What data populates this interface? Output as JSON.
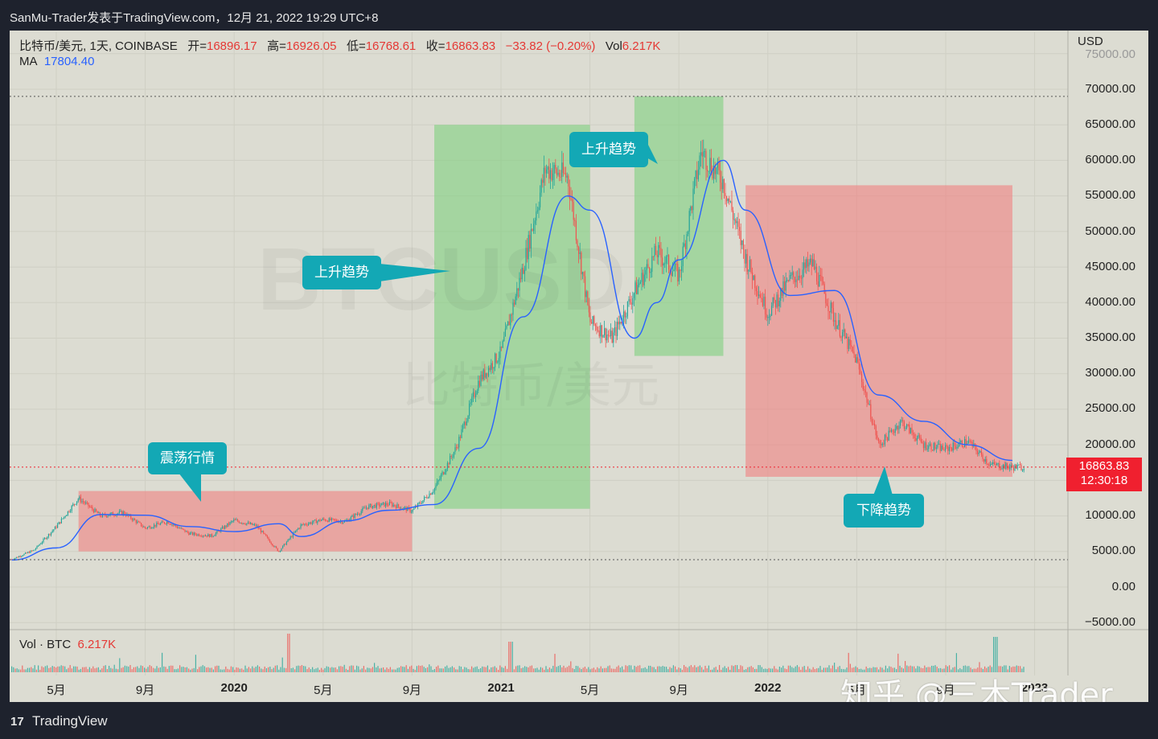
{
  "topbar": {
    "title": "SanMu-Trader发表于TradingView.com，12月 21, 2022 19:29 UTC+8"
  },
  "legend": {
    "symbol": "比特币/美元, 1天, COINBASE",
    "open_label": "开=",
    "open": "16896.17",
    "high_label": "高=",
    "high": "16926.05",
    "low_label": "低=",
    "low": "16768.61",
    "close_label": "收=",
    "close": "16863.83",
    "change": "−33.82 (−0.20%)",
    "vol_label": "Vol",
    "vol": "6.217K",
    "ma_label": "MA",
    "ma": "17804.40"
  },
  "volume_legend": {
    "label": "Vol · BTC",
    "value": "6.217K"
  },
  "axis": {
    "currency": "USD",
    "yticks": [
      "75000.00",
      "70000.00",
      "65000.00",
      "60000.00",
      "55000.00",
      "50000.00",
      "45000.00",
      "40000.00",
      "35000.00",
      "30000.00",
      "25000.00",
      "20000.00",
      "10000.00",
      "5000.00",
      "0.00",
      "−5000.00"
    ],
    "xticks": [
      {
        "label": "5月",
        "bold": false
      },
      {
        "label": "9月",
        "bold": false
      },
      {
        "label": "2020",
        "bold": true
      },
      {
        "label": "5月",
        "bold": false
      },
      {
        "label": "9月",
        "bold": false
      },
      {
        "label": "2021",
        "bold": true
      },
      {
        "label": "5月",
        "bold": false
      },
      {
        "label": "9月",
        "bold": false
      },
      {
        "label": "2022",
        "bold": true
      },
      {
        "label": "5月",
        "bold": false
      },
      {
        "label": "9月",
        "bold": false
      },
      {
        "label": "2023",
        "bold": true
      }
    ]
  },
  "price_box": {
    "price": "16863.83",
    "countdown": "12:30:18"
  },
  "callouts": {
    "range": "震荡行情",
    "uptrend1": "上升趋势",
    "uptrend2": "上升趋势",
    "downtrend": "下降趋势"
  },
  "background_text": {
    "symbol": "BTCUSD",
    "name": "比特币/美元"
  },
  "watermark": "知乎 @三木Trader",
  "footer": {
    "brand": "TradingView",
    "logo": "17"
  },
  "colors": {
    "up": "#26a69a",
    "down": "#ef5350",
    "ma": "#2962ff",
    "green_zone": "#7fd07f",
    "red_zone": "#f08080",
    "callout": "#13a8b5"
  },
  "chart_data": {
    "type": "candlestick",
    "title": "比特币/美元, 1天, COINBASE",
    "ylabel": "USD",
    "ylim": [
      -5000,
      75000
    ],
    "xrange": [
      "2019-03",
      "2023-01"
    ],
    "close_path": [
      {
        "date": "2019-03",
        "close": 3900
      },
      {
        "date": "2019-04",
        "close": 5200
      },
      {
        "date": "2019-05",
        "close": 8500
      },
      {
        "date": "2019-06",
        "close": 12500
      },
      {
        "date": "2019-07",
        "close": 10000
      },
      {
        "date": "2019-08",
        "close": 10500
      },
      {
        "date": "2019-09",
        "close": 8300
      },
      {
        "date": "2019-10",
        "close": 9200
      },
      {
        "date": "2019-11",
        "close": 7500
      },
      {
        "date": "2019-12",
        "close": 7200
      },
      {
        "date": "2020-01",
        "close": 9400
      },
      {
        "date": "2020-02",
        "close": 8600
      },
      {
        "date": "2020-03",
        "close": 5000
      },
      {
        "date": "2020-04",
        "close": 8700
      },
      {
        "date": "2020-05",
        "close": 9500
      },
      {
        "date": "2020-06",
        "close": 9200
      },
      {
        "date": "2020-07",
        "close": 11300
      },
      {
        "date": "2020-08",
        "close": 11700
      },
      {
        "date": "2020-09",
        "close": 10700
      },
      {
        "date": "2020-10",
        "close": 13800
      },
      {
        "date": "2020-11",
        "close": 19700
      },
      {
        "date": "2020-12",
        "close": 29000
      },
      {
        "date": "2021-01",
        "close": 33000
      },
      {
        "date": "2021-02",
        "close": 45000
      },
      {
        "date": "2021-03",
        "close": 58800
      },
      {
        "date": "2021-04",
        "close": 57700
      },
      {
        "date": "2021-05",
        "close": 37300
      },
      {
        "date": "2021-06",
        "close": 35000
      },
      {
        "date": "2021-07",
        "close": 41500
      },
      {
        "date": "2021-08",
        "close": 47100
      },
      {
        "date": "2021-09",
        "close": 43800
      },
      {
        "date": "2021-10",
        "close": 61300
      },
      {
        "date": "2021-11",
        "close": 57000
      },
      {
        "date": "2021-12",
        "close": 46300
      },
      {
        "date": "2022-01",
        "close": 38500
      },
      {
        "date": "2022-02",
        "close": 43200
      },
      {
        "date": "2022-03",
        "close": 45500
      },
      {
        "date": "2022-04",
        "close": 37700
      },
      {
        "date": "2022-05",
        "close": 31800
      },
      {
        "date": "2022-06",
        "close": 19900
      },
      {
        "date": "2022-07",
        "close": 23300
      },
      {
        "date": "2022-08",
        "close": 20000
      },
      {
        "date": "2022-09",
        "close": 19400
      },
      {
        "date": "2022-10",
        "close": 20500
      },
      {
        "date": "2022-11",
        "close": 17200
      },
      {
        "date": "2022-12",
        "close": 16864
      }
    ],
    "ma_path": [
      {
        "date": "2019-03",
        "ma": 3800
      },
      {
        "date": "2019-05",
        "ma": 5500
      },
      {
        "date": "2019-07",
        "ma": 10200
      },
      {
        "date": "2019-09",
        "ma": 10100
      },
      {
        "date": "2019-11",
        "ma": 8500
      },
      {
        "date": "2020-01",
        "ma": 7800
      },
      {
        "date": "2020-03",
        "ma": 8900
      },
      {
        "date": "2020-04",
        "ma": 7100
      },
      {
        "date": "2020-06",
        "ma": 9300
      },
      {
        "date": "2020-08",
        "ma": 10800
      },
      {
        "date": "2020-10",
        "ma": 11600
      },
      {
        "date": "2020-12",
        "ma": 19500
      },
      {
        "date": "2021-02",
        "ma": 38000
      },
      {
        "date": "2021-04",
        "ma": 55000
      },
      {
        "date": "2021-05",
        "ma": 53000
      },
      {
        "date": "2021-07",
        "ma": 35000
      },
      {
        "date": "2021-08",
        "ma": 40000
      },
      {
        "date": "2021-09",
        "ma": 46000
      },
      {
        "date": "2021-11",
        "ma": 60000
      },
      {
        "date": "2021-12",
        "ma": 53000
      },
      {
        "date": "2022-02",
        "ma": 41000
      },
      {
        "date": "2022-04",
        "ma": 41700
      },
      {
        "date": "2022-06",
        "ma": 27000
      },
      {
        "date": "2022-08",
        "ma": 23300
      },
      {
        "date": "2022-10",
        "ma": 20000
      },
      {
        "date": "2022-12",
        "ma": 17804
      }
    ],
    "zones": [
      {
        "label": "震荡行情",
        "type": "range",
        "from": "2019-06",
        "to": "2020-09",
        "low": 5000,
        "high": 13500
      },
      {
        "label": "上升趋势",
        "type": "up",
        "from": "2020-10",
        "to": "2021-05",
        "low": 11000,
        "high": 65000
      },
      {
        "label": "上升趋势",
        "type": "up",
        "from": "2021-07",
        "to": "2021-11",
        "low": 32500,
        "high": 69000
      },
      {
        "label": "下降趋势",
        "type": "down",
        "from": "2021-12",
        "to": "2022-12",
        "low": 15500,
        "high": 56500
      }
    ],
    "reference_lines": [
      69000,
      3850
    ],
    "last_price": 16863.83
  }
}
